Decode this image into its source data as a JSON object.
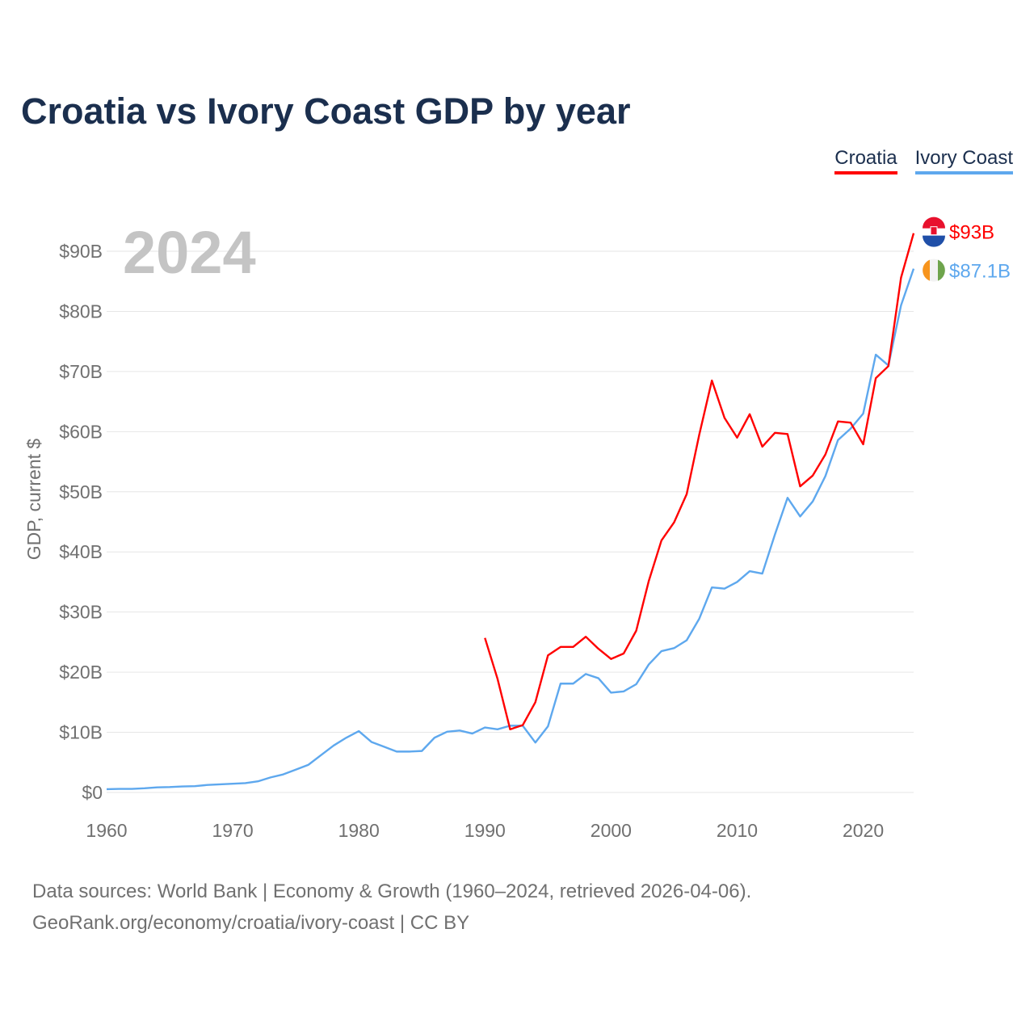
{
  "title": "Croatia vs Ivory Coast GDP by year",
  "legend": [
    {
      "label": "Croatia",
      "color": "#ff0000"
    },
    {
      "label": "Ivory Coast",
      "color": "#5ea8ee"
    }
  ],
  "year_label": "2024",
  "footer": {
    "line1": "Data sources: World Bank | Economy & Growth (1960–2024, retrieved 2026-04-06).",
    "line2": "GeoRank.org/economy/croatia/ivory-coast | CC BY"
  },
  "chart_data": {
    "type": "line",
    "title": "Croatia vs Ivory Coast GDP by year",
    "xlabel": "",
    "ylabel": "GDP, current $",
    "xlim": [
      1960,
      2024
    ],
    "ylim": [
      0,
      90
    ],
    "x_ticks": [
      1960,
      1970,
      1980,
      1990,
      2000,
      2010,
      2020
    ],
    "x_tick_labels": [
      "1960",
      "1970",
      "1980",
      "1990",
      "2000",
      "2010",
      "2020"
    ],
    "y_ticks": [
      0,
      10,
      20,
      30,
      40,
      50,
      60,
      70,
      80,
      90
    ],
    "y_tick_labels": [
      "$0",
      "$10B",
      "$20B",
      "$30B",
      "$40B",
      "$50B",
      "$60B",
      "$70B",
      "$80B",
      "$90B"
    ],
    "grid": true,
    "legend_position": "top-right",
    "series": [
      {
        "name": "Croatia",
        "color": "#ff0000",
        "start_year": 1990,
        "end_label": "$93B",
        "values": [
          25.7,
          18.9,
          10.5,
          11.2,
          15.0,
          22.8,
          24.2,
          24.2,
          25.9,
          23.9,
          22.2,
          23.1,
          26.9,
          35.2,
          41.9,
          44.9,
          49.6,
          59.5,
          68.5,
          62.3,
          59.0,
          62.9,
          57.5,
          59.8,
          59.6,
          50.9,
          52.7,
          56.2,
          61.7,
          61.5,
          57.9,
          68.9,
          70.9,
          85.6,
          93.0
        ]
      },
      {
        "name": "Ivory Coast",
        "color": "#5ea8ee",
        "start_year": 1960,
        "end_label": "$87.1B",
        "values": [
          0.55,
          0.6,
          0.6,
          0.7,
          0.85,
          0.9,
          1.0,
          1.05,
          1.25,
          1.35,
          1.45,
          1.55,
          1.85,
          2.5,
          3.0,
          3.8,
          4.6,
          6.2,
          7.8,
          9.1,
          10.2,
          8.4,
          7.6,
          6.8,
          6.8,
          6.9,
          9.1,
          10.1,
          10.3,
          9.8,
          10.8,
          10.5,
          11.1,
          11.1,
          8.3,
          11.0,
          18.1,
          18.1,
          19.7,
          19.0,
          16.6,
          16.8,
          18.0,
          21.3,
          23.5,
          24.0,
          25.3,
          28.9,
          34.1,
          33.9,
          35.0,
          36.8,
          36.4,
          42.9,
          49.0,
          45.9,
          48.4,
          52.6,
          58.6,
          60.5,
          63.0,
          72.8,
          71.0,
          81.0,
          87.1
        ]
      }
    ]
  }
}
